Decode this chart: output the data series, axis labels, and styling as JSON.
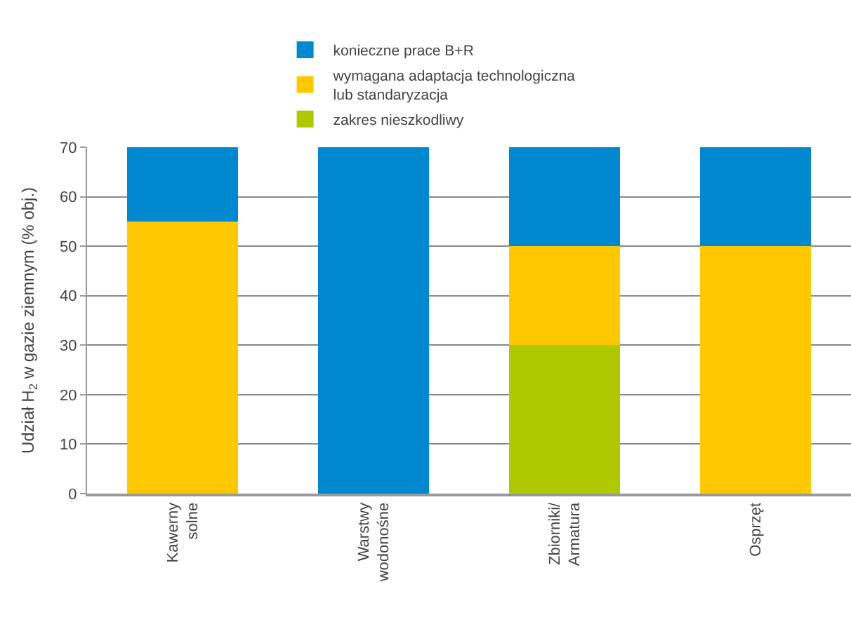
{
  "chart_data": {
    "type": "bar",
    "stacked": true,
    "ylabel": "Udział H$_{2}$ w gazie ziemnym (% obj.)",
    "categories": [
      "Kawerny\nsolne",
      "Warstwy\nwodonośne",
      "Zbiorniki/\nArmatura",
      "Osprzęt"
    ],
    "series": [
      {
        "name": "zakres nieszkodliwy",
        "color": "#afc800",
        "values": [
          null,
          null,
          30,
          null
        ]
      },
      {
        "name": "wymagana adaptacja technologiczna\nlub standaryzacja",
        "color": "#ffc800",
        "values": [
          55,
          null,
          20,
          50
        ]
      },
      {
        "name": "konieczne prace B+R",
        "color": "#0088d0",
        "values": [
          15,
          70,
          20,
          20
        ]
      }
    ],
    "ylim": [
      0,
      70
    ],
    "yticks": [
      0,
      10,
      20,
      30,
      40,
      50,
      60,
      70
    ],
    "grid": "y",
    "legend": "top"
  }
}
